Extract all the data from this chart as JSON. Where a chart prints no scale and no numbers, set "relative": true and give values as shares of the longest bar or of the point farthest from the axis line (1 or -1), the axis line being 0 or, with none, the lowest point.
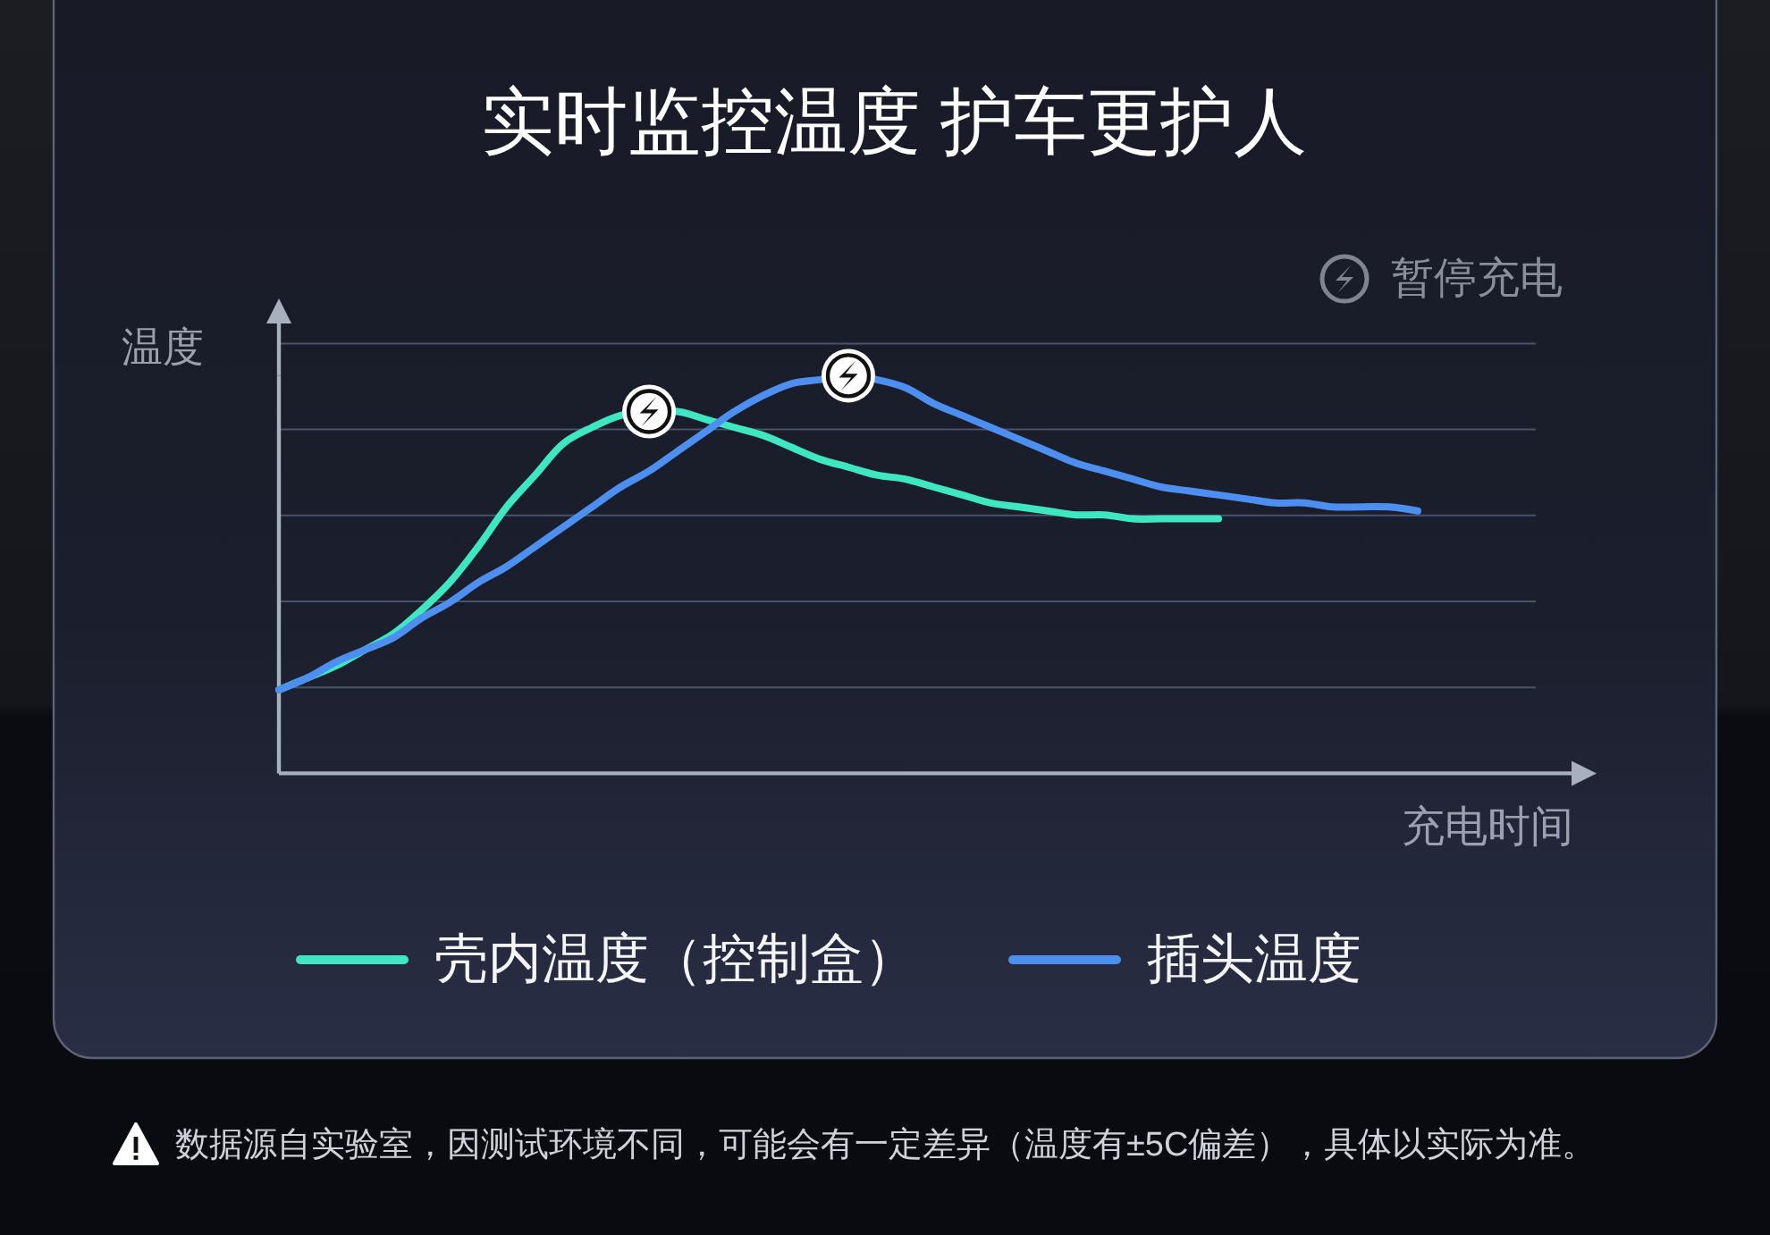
{
  "chart_data": {
    "type": "line",
    "title": "实时监控温度 护车更护人",
    "xlabel": "充电时间",
    "ylabel": "温度",
    "relative": true,
    "grid": "y",
    "legend": "bottom",
    "categories": [
      null,
      null,
      null,
      null,
      null,
      null,
      null,
      null,
      null,
      null,
      null,
      null,
      null,
      null,
      null,
      null,
      null,
      null,
      null,
      null,
      null,
      null,
      null,
      null,
      null,
      null,
      null,
      null,
      null,
      null,
      null,
      null,
      null,
      null,
      null,
      null,
      null,
      null,
      null,
      null,
      null
    ],
    "series": [
      {
        "name": "壳内温度（控制盒）",
        "color": "#3ee6c1",
        "values": [
          0.21,
          0.24,
          0.27,
          0.31,
          0.35,
          0.41,
          0.48,
          0.57,
          0.67,
          0.75,
          0.83,
          0.87,
          0.9,
          0.91,
          0.91,
          0.89,
          0.87,
          0.85,
          0.82,
          0.79,
          0.77,
          0.75,
          0.74,
          0.72,
          0.7,
          0.68,
          0.67,
          0.66,
          0.65,
          0.65,
          0.64,
          0.64,
          0.64,
          0.64,
          null,
          null,
          null,
          null,
          null,
          null,
          null
        ]
      },
      {
        "name": "插头温度",
        "color": "#4d8ff0",
        "values": [
          0.21,
          0.24,
          0.28,
          0.31,
          0.34,
          0.39,
          0.43,
          0.48,
          0.52,
          0.57,
          0.62,
          0.67,
          0.72,
          0.76,
          0.81,
          0.86,
          0.91,
          0.95,
          0.98,
          0.99,
          1,
          0.99,
          0.97,
          0.93,
          0.9,
          0.87,
          0.84,
          0.81,
          0.78,
          0.76,
          0.74,
          0.72,
          0.71,
          0.7,
          0.69,
          0.68,
          0.68,
          0.67,
          0.67,
          0.67,
          0.66
        ]
      }
    ],
    "annotations": [
      "暂停充电",
      "数据源自实验室，因测试环境不同，可能会有一定差异（温度有±5C偏差），具体以实际为准。"
    ]
  }
}
